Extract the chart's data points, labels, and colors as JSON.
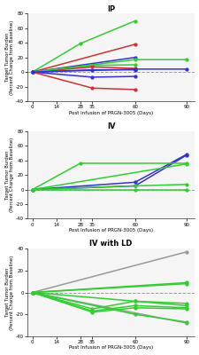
{
  "panels": [
    {
      "title": "IP",
      "xlabel": "Post Infusion of PRGN-3005 (Days)",
      "ylabel": "Target Tumor Burden\n(Percent Change from Baseline)",
      "ylim": [
        -40,
        80
      ],
      "yticks": [
        -40,
        -20,
        0,
        20,
        40,
        60,
        80
      ],
      "xticks": [
        0,
        14,
        28,
        35,
        60,
        90
      ],
      "lines": [
        {
          "x": [
            0,
            28,
            60
          ],
          "y": [
            0,
            39,
            70
          ],
          "color": "#33cc33"
        },
        {
          "x": [
            0,
            60
          ],
          "y": [
            0,
            38
          ],
          "color": "#cc3333"
        },
        {
          "x": [
            0,
            60
          ],
          "y": [
            0,
            20
          ],
          "color": "#3333cc"
        },
        {
          "x": [
            0,
            35,
            60
          ],
          "y": [
            0,
            9,
            10
          ],
          "color": "#33cc33"
        },
        {
          "x": [
            0,
            35,
            60
          ],
          "y": [
            0,
            7,
            5
          ],
          "color": "#cc3333"
        },
        {
          "x": [
            0,
            35,
            60
          ],
          "y": [
            0,
            3,
            3
          ],
          "color": "#3333cc"
        },
        {
          "x": [
            0,
            35,
            60
          ],
          "y": [
            0,
            -7,
            -6
          ],
          "color": "#3333cc"
        },
        {
          "x": [
            0,
            35,
            60
          ],
          "y": [
            0,
            -22,
            -24
          ],
          "color": "#cc3333"
        },
        {
          "x": [
            0,
            60,
            90
          ],
          "y": [
            0,
            17,
            17
          ],
          "color": "#33cc33"
        },
        {
          "x": [
            0,
            60,
            90
          ],
          "y": [
            0,
            4,
            4
          ],
          "color": "#3333cc"
        }
      ]
    },
    {
      "title": "IV",
      "xlabel": "Post Infusion of PRGN-3005 (Days)",
      "ylabel": "Target Tumor Burden\n(Percent Change from Baseline)",
      "ylim": [
        -40,
        80
      ],
      "yticks": [
        -40,
        -20,
        0,
        20,
        40,
        60,
        80
      ],
      "xticks": [
        0,
        14,
        28,
        35,
        60,
        90
      ],
      "lines": [
        {
          "x": [
            0,
            60,
            90
          ],
          "y": [
            0,
            10,
            48
          ],
          "color": "#3333cc"
        },
        {
          "x": [
            0,
            60,
            90
          ],
          "y": [
            0,
            5,
            47
          ],
          "color": "#3333cc"
        },
        {
          "x": [
            0,
            28,
            90
          ],
          "y": [
            0,
            36,
            36
          ],
          "color": "#33cc33"
        },
        {
          "x": [
            0,
            90
          ],
          "y": [
            0,
            35
          ],
          "color": "#33cc33"
        },
        {
          "x": [
            0,
            60,
            90
          ],
          "y": [
            0,
            5,
            7
          ],
          "color": "#33cc33"
        },
        {
          "x": [
            0,
            60,
            90
          ],
          "y": [
            0,
            0,
            0
          ],
          "color": "#33cc33"
        }
      ]
    },
    {
      "title": "IV with LD",
      "xlabel": "Post Infusion of PRGN-3005 (Days)",
      "ylabel": "Target Tumor Burden\n(Percent Change from Baseline)",
      "ylim": [
        -40,
        40
      ],
      "yticks": [
        -40,
        -20,
        0,
        20,
        40
      ],
      "xticks": [
        0,
        14,
        28,
        35,
        60,
        90
      ],
      "lines": [
        {
          "x": [
            0,
            90
          ],
          "y": [
            0,
            37
          ],
          "color": "#999999"
        },
        {
          "x": [
            0,
            90
          ],
          "y": [
            0,
            -28
          ],
          "color": "#999999"
        },
        {
          "x": [
            0,
            90
          ],
          "y": [
            0,
            9
          ],
          "color": "#33cc33"
        },
        {
          "x": [
            0,
            90
          ],
          "y": [
            0,
            8
          ],
          "color": "#33cc33"
        },
        {
          "x": [
            0,
            60,
            90
          ],
          "y": [
            0,
            -8,
            -10
          ],
          "color": "#33cc33"
        },
        {
          "x": [
            0,
            35,
            60,
            90
          ],
          "y": [
            0,
            -15,
            -8,
            -12
          ],
          "color": "#33cc33"
        },
        {
          "x": [
            0,
            35,
            60,
            90
          ],
          "y": [
            0,
            -17,
            -12,
            -14
          ],
          "color": "#33cc33"
        },
        {
          "x": [
            0,
            35,
            60,
            90
          ],
          "y": [
            0,
            -18,
            -14,
            -15
          ],
          "color": "#33cc33"
        },
        {
          "x": [
            0,
            60,
            90
          ],
          "y": [
            0,
            -20,
            -27
          ],
          "color": "#33cc33"
        }
      ]
    }
  ],
  "bg_color": "#f5f5f5",
  "dashed_color": "#888888"
}
